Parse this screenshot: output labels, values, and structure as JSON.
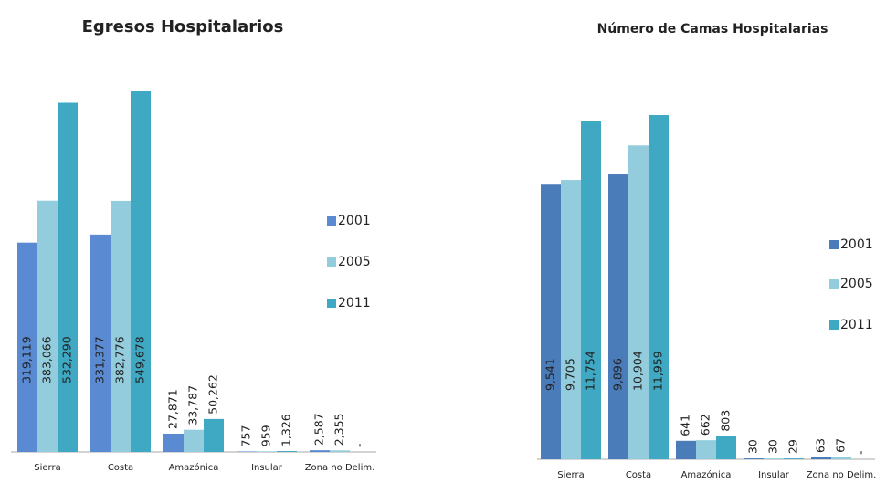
{
  "chart_data": [
    {
      "type": "bar",
      "title": "Egresos Hospitalarios",
      "categories": [
        "Sierra",
        "Costa",
        "Amazónica",
        "Insular",
        "Zona no Delim."
      ],
      "series": [
        {
          "name": "2001",
          "color": "#5a8bd2",
          "values": [
            319119,
            331377,
            27871,
            757,
            2587
          ],
          "value_labels": [
            "319,119",
            "331,377",
            "27,871",
            "757",
            "2,587"
          ]
        },
        {
          "name": "2005",
          "color": "#93cddd",
          "values": [
            383066,
            382776,
            33787,
            959,
            2355
          ],
          "value_labels": [
            "383,066",
            "382,776",
            "33,787",
            "959",
            "2,355"
          ]
        },
        {
          "name": "2011",
          "color": "#3fa9c4",
          "values": [
            532290,
            549678,
            50262,
            1326,
            null
          ],
          "value_labels": [
            "532,290",
            "549,678",
            "50,262",
            "1,326",
            "-"
          ]
        }
      ]
    },
    {
      "type": "bar",
      "title": "Número de Camas Hospitalarias",
      "categories": [
        "Sierra",
        "Costa",
        "Amazónica",
        "Insular",
        "Zona no Delim."
      ],
      "series": [
        {
          "name": "2001",
          "color": "#4a7cba",
          "values": [
            9541,
            9896,
            641,
            30,
            63
          ],
          "value_labels": [
            "9,541",
            "9,896",
            "641",
            "30",
            "63"
          ]
        },
        {
          "name": "2005",
          "color": "#93cddd",
          "values": [
            9705,
            10904,
            662,
            30,
            67
          ],
          "value_labels": [
            "9,705",
            "10,904",
            "662",
            "30",
            "67"
          ]
        },
        {
          "name": "2011",
          "color": "#3fa9c4",
          "values": [
            11754,
            11959,
            803,
            29,
            null
          ],
          "value_labels": [
            "11,754",
            "11,959",
            "803",
            "29",
            "-"
          ]
        }
      ]
    }
  ]
}
